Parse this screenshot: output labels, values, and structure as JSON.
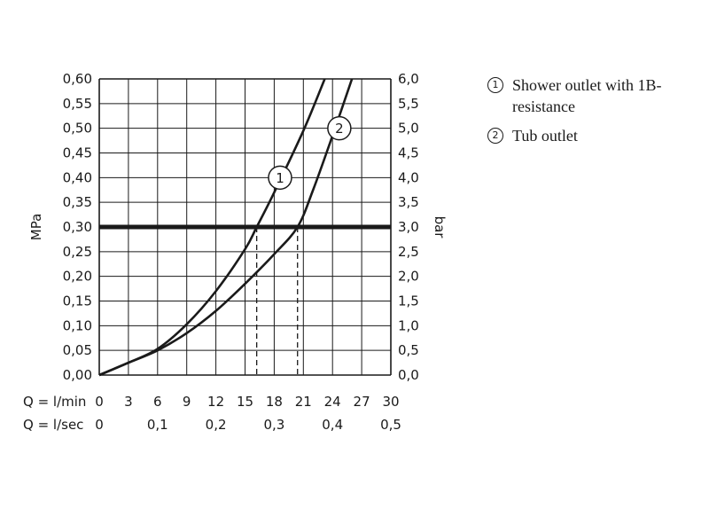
{
  "chart_data": {
    "type": "line",
    "ylabel_left": "MPa",
    "ylabel_right": "bar",
    "x_label_min": "Q = l/min",
    "x_label_sec": "Q = l/sec",
    "xlim": [
      0,
      30
    ],
    "ylim": [
      0,
      0.6
    ],
    "x_ticks_min": [
      "0",
      "3",
      "6",
      "9",
      "12",
      "15",
      "18",
      "21",
      "24",
      "27",
      "30"
    ],
    "x_ticks_sec": [
      {
        "x": 0,
        "label": "0"
      },
      {
        "x": 6,
        "label": "0,1"
      },
      {
        "x": 12,
        "label": "0,2"
      },
      {
        "x": 18,
        "label": "0,3"
      },
      {
        "x": 24,
        "label": "0,4"
      },
      {
        "x": 30,
        "label": "0,5"
      }
    ],
    "y_ticks_left": [
      "0,00",
      "0,05",
      "0,10",
      "0,15",
      "0,20",
      "0,25",
      "0,30",
      "0,35",
      "0,40",
      "0,45",
      "0,50",
      "0,55",
      "0,60"
    ],
    "y_ticks_right": [
      "0,0",
      "0,5",
      "1,0",
      "1,5",
      "2,0",
      "2,5",
      "3,0",
      "3,5",
      "4,0",
      "4,5",
      "5,0",
      "5,5",
      "6,0"
    ],
    "grid": true,
    "reference_line": {
      "y": 0.3
    },
    "drop_lines": [
      {
        "x": 16.2,
        "y": 0.3
      },
      {
        "x": 20.4,
        "y": 0.3
      }
    ],
    "series": [
      {
        "marker": "1",
        "label_at": {
          "x": 18.6,
          "y": 0.4
        },
        "points": [
          [
            0,
            0
          ],
          [
            3,
            0.025
          ],
          [
            6,
            0.053
          ],
          [
            9,
            0.103
          ],
          [
            12,
            0.17
          ],
          [
            15,
            0.255
          ],
          [
            16.2,
            0.3
          ],
          [
            18,
            0.37
          ],
          [
            21,
            0.495
          ],
          [
            23.2,
            0.6
          ]
        ]
      },
      {
        "marker": "2",
        "label_at": {
          "x": 24.7,
          "y": 0.5
        },
        "points": [
          [
            0,
            0
          ],
          [
            3,
            0.025
          ],
          [
            6,
            0.05
          ],
          [
            9,
            0.085
          ],
          [
            12,
            0.13
          ],
          [
            15,
            0.185
          ],
          [
            18,
            0.245
          ],
          [
            20.4,
            0.3
          ],
          [
            22,
            0.375
          ],
          [
            24,
            0.485
          ],
          [
            26,
            0.6
          ]
        ]
      }
    ]
  },
  "legend": [
    {
      "num": "1",
      "text": "Shower outlet with 1B-resistance"
    },
    {
      "num": "2",
      "text": "Tub outlet"
    }
  ]
}
